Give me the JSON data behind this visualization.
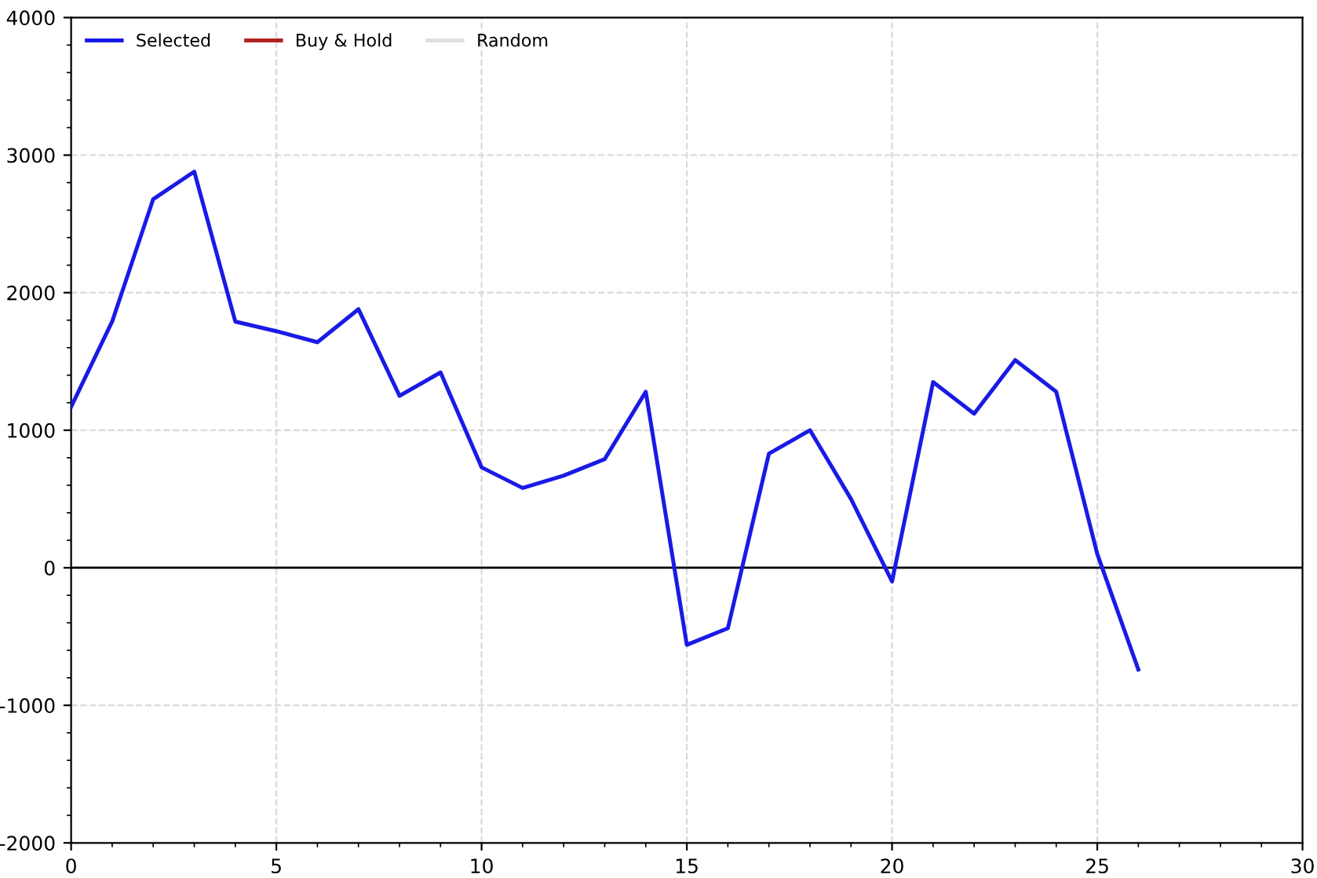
{
  "chart_data": {
    "type": "line",
    "x": [
      0,
      1,
      2,
      3,
      4,
      5,
      6,
      7,
      8,
      9,
      10,
      11,
      12,
      13,
      14,
      15,
      16,
      17,
      18,
      19,
      20,
      21,
      22,
      23,
      24,
      25,
      26
    ],
    "series": [
      {
        "name": "Selected",
        "color": "#1a1ae6",
        "values": [
          1170,
          1790,
          2680,
          2880,
          1790,
          1720,
          1640,
          1880,
          1250,
          1420,
          730,
          580,
          670,
          790,
          1280,
          -560,
          -440,
          830,
          1000,
          500,
          -100,
          1350,
          1120,
          1510,
          1280,
          100,
          -740
        ]
      },
      {
        "name": "Buy & Hold",
        "color": "#b22222",
        "values": [
          null,
          null,
          null,
          null,
          null,
          null,
          null,
          null,
          null,
          null,
          null,
          null,
          null,
          null,
          null,
          null,
          null,
          null,
          null,
          null,
          null,
          null,
          null,
          null,
          null,
          null,
          null
        ]
      },
      {
        "name": "Random",
        "color": "#e0e0e0",
        "values": [
          null,
          null,
          null,
          null,
          null,
          null,
          null,
          null,
          null,
          null,
          null,
          null,
          null,
          null,
          null,
          null,
          null,
          null,
          null,
          null,
          null,
          null,
          null,
          null,
          null,
          null,
          null
        ]
      }
    ],
    "xlim": [
      0,
      30
    ],
    "xticks": [
      0,
      5,
      10,
      15,
      20,
      25,
      30
    ],
    "ylim": [
      -2000,
      4000
    ],
    "yticks": [
      -2000,
      -1000,
      0,
      1000,
      2000,
      3000,
      4000
    ],
    "ref_lines": [
      {
        "axis": "y",
        "value": 0,
        "color": "#000000"
      }
    ],
    "grid": true,
    "legend": "top left",
    "line_style": "solid",
    "marker": "none"
  }
}
